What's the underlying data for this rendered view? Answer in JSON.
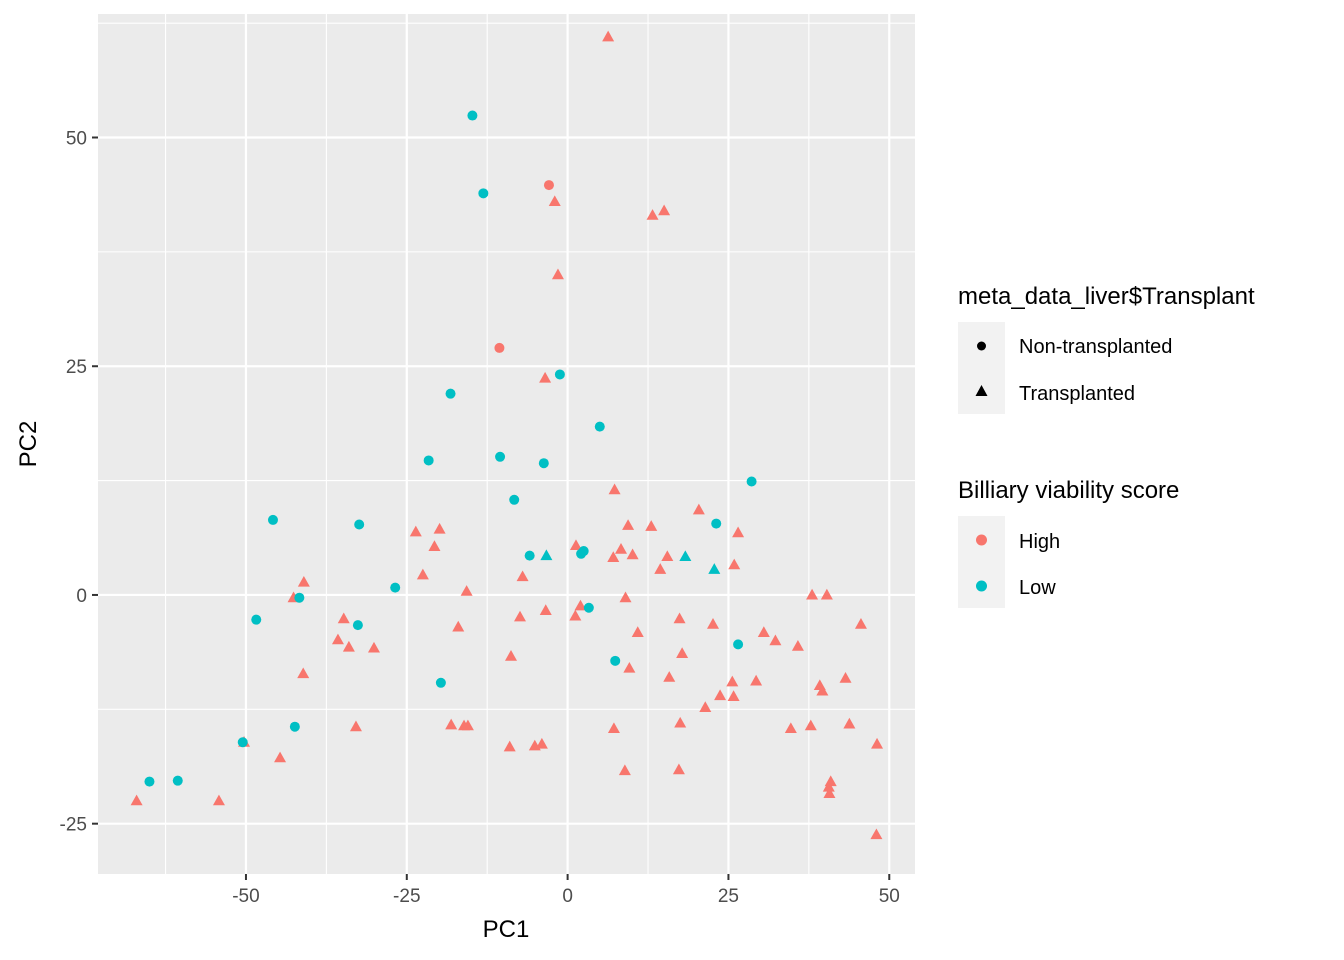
{
  "chart_data": {
    "type": "scatter",
    "xlabel": "PC1",
    "ylabel": "PC2",
    "xlim": [
      -73,
      54
    ],
    "ylim": [
      -30.5,
      63.5
    ],
    "x_ticks": [
      -50,
      -25,
      0,
      25,
      50
    ],
    "y_ticks": [
      -25,
      0,
      25,
      50
    ],
    "x_tick_labels": [
      "-50",
      "-25",
      "0",
      "25",
      "50"
    ],
    "y_tick_labels": [
      "-25",
      "0",
      "25",
      "50"
    ],
    "grid": true,
    "legend_position": "right",
    "legends": [
      {
        "title": "meta_data_liver$Transplant",
        "kind": "shape",
        "entries": [
          {
            "label": "Non-transplanted",
            "shape": "circle"
          },
          {
            "label": "Transplanted",
            "shape": "triangle"
          }
        ]
      },
      {
        "title": "Billiary viability score",
        "kind": "color",
        "entries": [
          {
            "label": "High",
            "color": "#F8766D"
          },
          {
            "label": "Low",
            "color": "#00BFC4"
          }
        ]
      }
    ],
    "colors": {
      "High": "#F8766D",
      "Low": "#00BFC4"
    },
    "series": [
      {
        "name": "High",
        "shape": "triangle",
        "points": [
          [
            6.3,
            61.0
          ],
          [
            -2.0,
            43.0
          ],
          [
            13.2,
            41.5
          ],
          [
            15.0,
            42.0
          ],
          [
            -1.5,
            35.0
          ],
          [
            -3.5,
            23.7
          ],
          [
            7.3,
            11.5
          ],
          [
            20.4,
            9.3
          ],
          [
            9.4,
            7.6
          ],
          [
            13.0,
            7.5
          ],
          [
            26.5,
            6.8
          ],
          [
            -23.6,
            6.9
          ],
          [
            -19.9,
            7.2
          ],
          [
            -20.7,
            5.3
          ],
          [
            1.3,
            5.4
          ],
          [
            8.3,
            5.0
          ],
          [
            10.1,
            4.4
          ],
          [
            7.1,
            4.1
          ],
          [
            15.5,
            4.2
          ],
          [
            25.9,
            3.3
          ],
          [
            14.4,
            2.8
          ],
          [
            -22.5,
            2.2
          ],
          [
            -7.0,
            2.0
          ],
          [
            -41.0,
            1.4
          ],
          [
            -15.7,
            0.4
          ],
          [
            38.0,
            0.0
          ],
          [
            40.3,
            0.0
          ],
          [
            -42.6,
            -0.3
          ],
          [
            9.0,
            -0.3
          ],
          [
            2.0,
            -1.2
          ],
          [
            -3.4,
            -1.7
          ],
          [
            1.2,
            -2.3
          ],
          [
            -7.4,
            -2.4
          ],
          [
            17.4,
            -2.6
          ],
          [
            -34.8,
            -2.6
          ],
          [
            -17.0,
            -3.5
          ],
          [
            22.6,
            -3.2
          ],
          [
            45.6,
            -3.2
          ],
          [
            10.9,
            -4.1
          ],
          [
            30.5,
            -4.1
          ],
          [
            -35.7,
            -4.9
          ],
          [
            -34.0,
            -5.7
          ],
          [
            -30.1,
            -5.8
          ],
          [
            35.8,
            -5.6
          ],
          [
            32.3,
            -5.0
          ],
          [
            17.8,
            -6.4
          ],
          [
            -8.8,
            -6.7
          ],
          [
            9.6,
            -8.0
          ],
          [
            -41.1,
            -8.6
          ],
          [
            15.8,
            -9.0
          ],
          [
            29.3,
            -9.4
          ],
          [
            25.6,
            -9.5
          ],
          [
            43.2,
            -9.1
          ],
          [
            39.2,
            -9.9
          ],
          [
            39.6,
            -10.5
          ],
          [
            23.7,
            -11.0
          ],
          [
            25.8,
            -11.1
          ],
          [
            21.4,
            -12.3
          ],
          [
            -32.9,
            -14.4
          ],
          [
            -18.1,
            -14.2
          ],
          [
            -16.1,
            -14.3
          ],
          [
            -15.5,
            -14.3
          ],
          [
            7.2,
            -14.6
          ],
          [
            17.5,
            -14.0
          ],
          [
            34.7,
            -14.6
          ],
          [
            37.8,
            -14.3
          ],
          [
            43.8,
            -14.1
          ],
          [
            -50.3,
            -16.1
          ],
          [
            -9.0,
            -16.6
          ],
          [
            -5.1,
            -16.5
          ],
          [
            -4.0,
            -16.3
          ],
          [
            48.1,
            -16.3
          ],
          [
            -44.7,
            -17.8
          ],
          [
            8.9,
            -19.2
          ],
          [
            17.3,
            -19.1
          ],
          [
            40.9,
            -20.4
          ],
          [
            40.6,
            -21.0
          ],
          [
            40.7,
            -21.7
          ],
          [
            -67.0,
            -22.5
          ],
          [
            -54.2,
            -22.5
          ],
          [
            48.0,
            -26.2
          ]
        ]
      },
      {
        "name": "High",
        "shape": "circle",
        "points": [
          [
            -2.9,
            44.8
          ],
          [
            -10.6,
            27.0
          ]
        ]
      },
      {
        "name": "Low",
        "shape": "circle",
        "points": [
          [
            -14.8,
            52.4
          ],
          [
            -13.1,
            43.9
          ],
          [
            -1.2,
            24.1
          ],
          [
            -18.2,
            22.0
          ],
          [
            5.0,
            18.4
          ],
          [
            -21.6,
            14.7
          ],
          [
            -10.5,
            15.1
          ],
          [
            -3.7,
            14.4
          ],
          [
            28.6,
            12.4
          ],
          [
            -8.3,
            10.4
          ],
          [
            -45.8,
            8.2
          ],
          [
            -32.4,
            7.7
          ],
          [
            23.1,
            7.8
          ],
          [
            -5.9,
            4.3
          ],
          [
            2.1,
            4.5
          ],
          [
            2.5,
            4.8
          ],
          [
            -26.8,
            0.8
          ],
          [
            -41.7,
            -0.3
          ],
          [
            3.3,
            -1.4
          ],
          [
            -48.4,
            -2.7
          ],
          [
            -32.6,
            -3.3
          ],
          [
            26.5,
            -5.4
          ],
          [
            7.4,
            -7.2
          ],
          [
            -19.7,
            -9.6
          ],
          [
            -42.4,
            -14.4
          ],
          [
            -50.5,
            -16.1
          ],
          [
            -65.0,
            -20.4
          ],
          [
            -60.6,
            -20.3
          ]
        ]
      },
      {
        "name": "Low",
        "shape": "triangle",
        "points": [
          [
            -3.3,
            4.3
          ],
          [
            18.3,
            4.2
          ],
          [
            22.8,
            2.8
          ]
        ]
      }
    ]
  }
}
